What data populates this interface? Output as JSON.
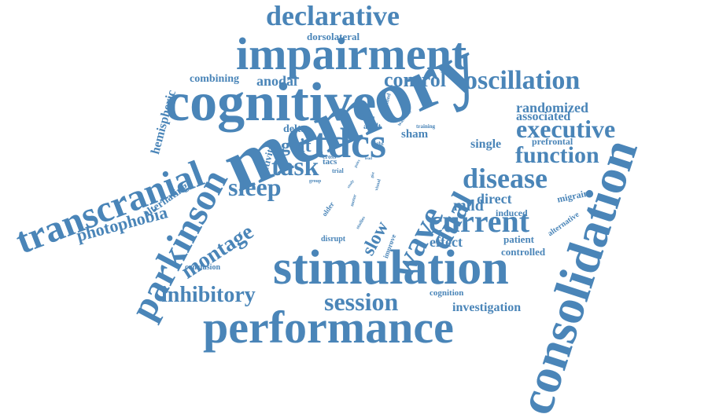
{
  "word_color": "#4a85b8",
  "background": "#ffffff",
  "words": {
    "memory": "memory",
    "consolidation": "consolidation",
    "cognitive": "cognitive",
    "stimulation": "stimulation",
    "impairment": "impairment",
    "performance": "performance",
    "transcranial": "transcranial",
    "parkinson": "parkinson",
    "declarative": "declarative",
    "tdcs": "tdcs",
    "oscillation": "oscillation",
    "wave": "wave",
    "current": "current",
    "disease": "disease",
    "function": "function",
    "executive": "executive",
    "task": "task",
    "sleep": "sleep",
    "session": "session",
    "inhibitory": "inhibitory",
    "dual": "dual",
    "control": "control",
    "montage": "montage",
    "slow": "slow",
    "gait": "gait",
    "photophobia": "photophobia",
    "randomized": "randomized",
    "associated": "associated",
    "investigation": "investigation",
    "hemispheric": "hemispheric",
    "alternating": "alternating",
    "anodal": "anodal",
    "combining": "combining",
    "dorsolateral": "dorsolateral",
    "mild": "mild",
    "direct": "direct",
    "effect": "effect",
    "sham": "sham",
    "single": "single",
    "delta": "delta",
    "prefrontal": "prefrontal",
    "migraine": "migraine",
    "induced": "induced",
    "patient": "patient",
    "controlled": "controlled",
    "cognition": "cognition",
    "alternative": "alternative",
    "conclusion": "conclusion",
    "disrupt": "disrupt",
    "improve": "improve",
    "studies": "studies",
    "activity": "activity",
    "tacs": "tacs",
    "trial": "trial",
    "cross": "cross",
    "adult": "adult",
    "older": "older",
    "light": "light",
    "training": "training",
    "method": "method",
    "walking": "walking",
    "group": "group",
    "motor": "motor",
    "visual": "visual",
    "gist": "gist",
    "study": "study",
    "pairs": "pairs",
    "left": "left",
    "lead": "lead"
  }
}
